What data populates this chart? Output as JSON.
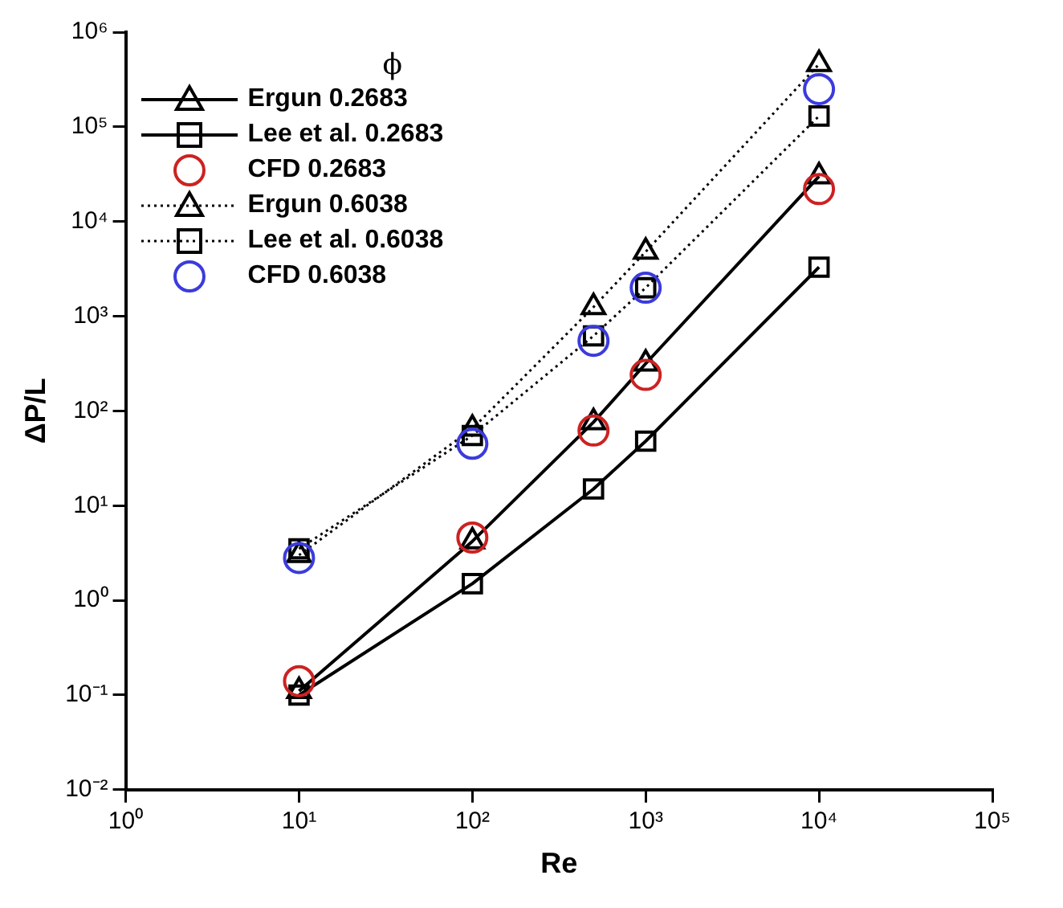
{
  "chart_data": {
    "type": "line",
    "xlabel": "Re",
    "ylabel": "ΔP/L",
    "legend_title": "ϕ",
    "log": "xy",
    "grid": false,
    "legend": "top left",
    "x": [
      10,
      100,
      500,
      1000,
      10000
    ],
    "xlim": [
      1,
      100000
    ],
    "xticks": [
      {
        "value": 1,
        "label": "10⁰"
      },
      {
        "value": 10,
        "label": "10¹"
      },
      {
        "value": 100,
        "label": "10²"
      },
      {
        "value": 1000,
        "label": "10³"
      },
      {
        "value": 10000,
        "label": "10⁴"
      },
      {
        "value": 100000,
        "label": "10⁵"
      }
    ],
    "ylim": [
      0.01,
      1000000
    ],
    "yticks": [
      {
        "value": 0.01,
        "label": "10⁻²"
      },
      {
        "value": 0.1,
        "label": "10⁻¹"
      },
      {
        "value": 1,
        "label": "10⁰"
      },
      {
        "value": 10,
        "label": "10¹"
      },
      {
        "value": 100,
        "label": "10²"
      },
      {
        "value": 1000,
        "label": "10³"
      },
      {
        "value": 10000,
        "label": "10⁴"
      },
      {
        "value": 100000,
        "label": "10⁵"
      },
      {
        "value": 1000000,
        "label": "10⁶"
      }
    ],
    "series": [
      {
        "name": "Ergun 0.2683",
        "type": "line",
        "color": "#000000",
        "marker": "triangle",
        "line_style": "solid",
        "values": [
          0.11,
          4.2,
          76,
          316,
          30000
        ]
      },
      {
        "name": "Lee et al. 0.2683",
        "type": "line",
        "color": "#000000",
        "marker": "square",
        "line_style": "solid",
        "values": [
          0.1,
          1.5,
          15,
          48,
          3300
        ]
      },
      {
        "name": "CFD 0.2683",
        "type": "scatter",
        "color": "#cc2222",
        "marker": "circle",
        "values": [
          0.14,
          4.6,
          62,
          240,
          22000
        ]
      },
      {
        "name": "Ergun 0.6038",
        "type": "line",
        "color": "#000000",
        "marker": "triangle",
        "line_style": "dotted",
        "values": [
          3,
          65,
          1250,
          4800,
          460000
        ]
      },
      {
        "name": "Lee et al. 0.6038",
        "type": "line",
        "color": "#000000",
        "marker": "square",
        "line_style": "dotted",
        "values": [
          3.5,
          55,
          620,
          2000,
          130000
        ]
      },
      {
        "name": "CFD 0.6038",
        "type": "scatter",
        "color": "#3b3bdd",
        "marker": "circle",
        "values": [
          2.8,
          45,
          550,
          2000,
          250000
        ]
      }
    ]
  }
}
